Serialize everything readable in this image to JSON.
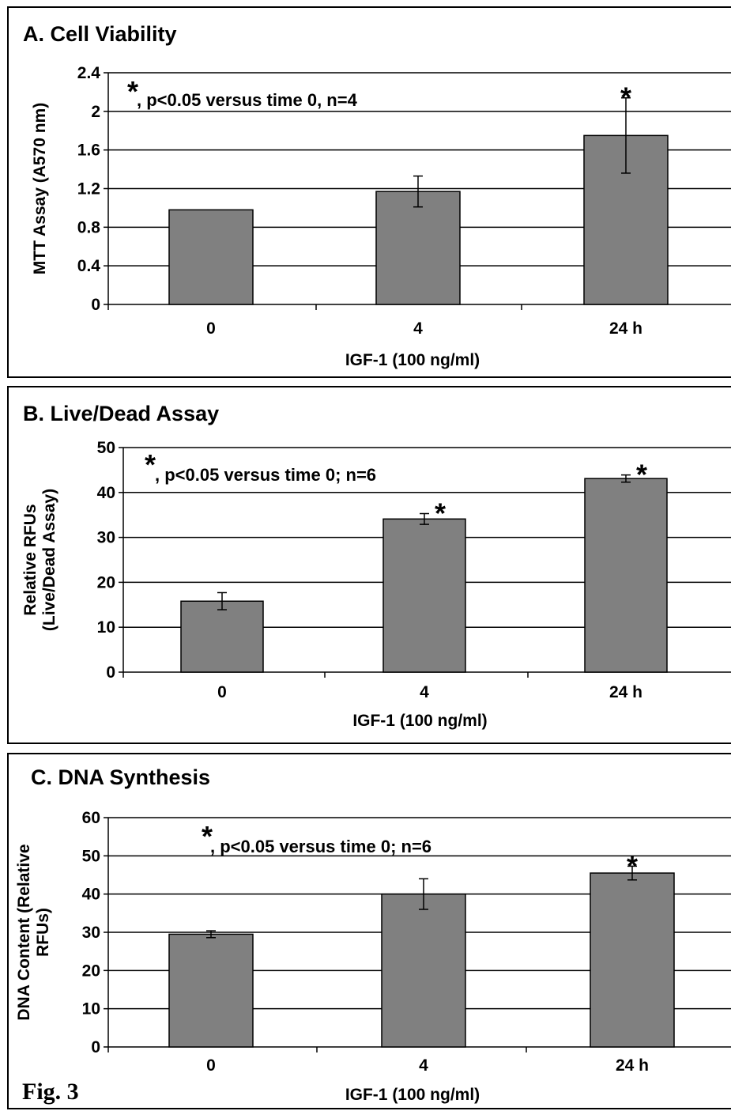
{
  "figure_label": "Fig. 3",
  "chart_data": [
    {
      "type": "bar",
      "title": "A. Cell Viability",
      "xlabel": "IGF-1 (100 ng/ml)",
      "ylabel": [
        "MTT Assay (A570 nm)"
      ],
      "categories": [
        "0",
        "4",
        "24 h"
      ],
      "values": [
        0.98,
        1.17,
        1.75
      ],
      "errors": [
        0,
        0.16,
        0.39
      ],
      "significant": [
        false,
        false,
        true
      ],
      "ylim": [
        0,
        2.4
      ],
      "yticks": [
        "0",
        "0.4",
        "0.8",
        "1.2",
        "1.6",
        "2",
        "2.4"
      ],
      "annotation": ", p<0.05 versus time 0, n=4",
      "star_symbol": "*",
      "bar_color": "#808080",
      "grid": true
    },
    {
      "type": "bar",
      "title": "B. Live/Dead Assay",
      "xlabel": "IGF-1 (100 ng/ml)",
      "ylabel": [
        "Relative RFUs",
        "(Live/Dead Assay)"
      ],
      "categories": [
        "0",
        "4",
        "24 h"
      ],
      "values": [
        15.8,
        34.1,
        43.1
      ],
      "errors": [
        1.9,
        1.2,
        0.8
      ],
      "significant": [
        false,
        true,
        true
      ],
      "ylim": [
        0,
        50
      ],
      "yticks": [
        "0",
        "10",
        "20",
        "30",
        "40",
        "50"
      ],
      "annotation": ", p<0.05 versus time 0; n=6",
      "star_symbol": "*",
      "bar_color": "#808080",
      "grid": true
    },
    {
      "type": "bar",
      "title": "C. DNA Synthesis",
      "xlabel": "IGF-1 (100 ng/ml)",
      "ylabel": [
        "DNA Content (Relative",
        "RFUs)"
      ],
      "categories": [
        "0",
        "4",
        "24 h"
      ],
      "values": [
        29.5,
        40.0,
        45.5
      ],
      "errors": [
        0.9,
        4.0,
        1.8
      ],
      "significant": [
        false,
        false,
        true
      ],
      "ylim": [
        0,
        60
      ],
      "yticks": [
        "0",
        "10",
        "20",
        "30",
        "40",
        "50",
        "60"
      ],
      "annotation": ", p<0.05 versus time 0; n=6",
      "star_symbol": "*",
      "bar_color": "#808080",
      "grid": true
    }
  ]
}
